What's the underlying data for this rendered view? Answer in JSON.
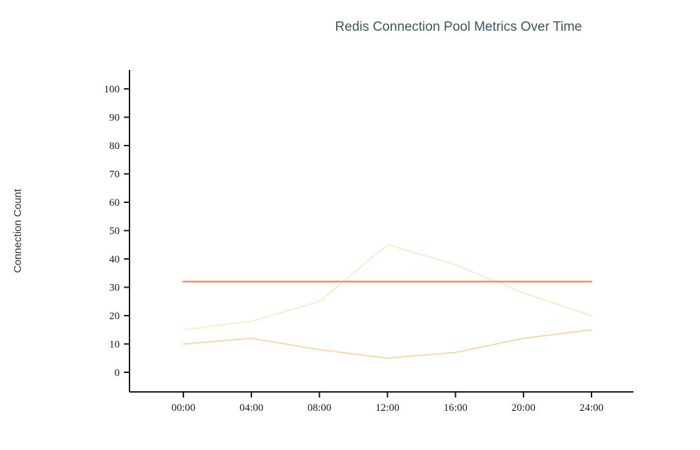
{
  "chart_data": {
    "type": "line",
    "title": "Redis Connection Pool Metrics Over Time",
    "xlabel": "",
    "ylabel": "Connection Count",
    "x_ticks": [
      "00:00",
      "04:00",
      "08:00",
      "12:00",
      "16:00",
      "20:00",
      "24:00"
    ],
    "y_ticks": [
      0,
      10,
      20,
      30,
      40,
      50,
      60,
      70,
      80,
      90,
      100
    ],
    "ylim": [
      0,
      100
    ],
    "grid": false,
    "legend": "none",
    "background": "#ffffff",
    "axis_color": "#1a1a1a",
    "series": [
      {
        "name": "upper-light-peach-line",
        "color": "#fcead0",
        "width": 2,
        "values": [
          15,
          18,
          25,
          45,
          38,
          28,
          20
        ]
      },
      {
        "name": "lower-light-orange-line",
        "color": "#f8d9ab",
        "width": 2,
        "values": [
          10,
          12,
          8,
          5,
          7,
          12,
          15
        ]
      },
      {
        "name": "constant-threshold-line",
        "color": "#f28e63",
        "width": 2.5,
        "values": [
          32,
          32,
          32,
          32,
          32,
          32,
          32
        ]
      }
    ]
  }
}
